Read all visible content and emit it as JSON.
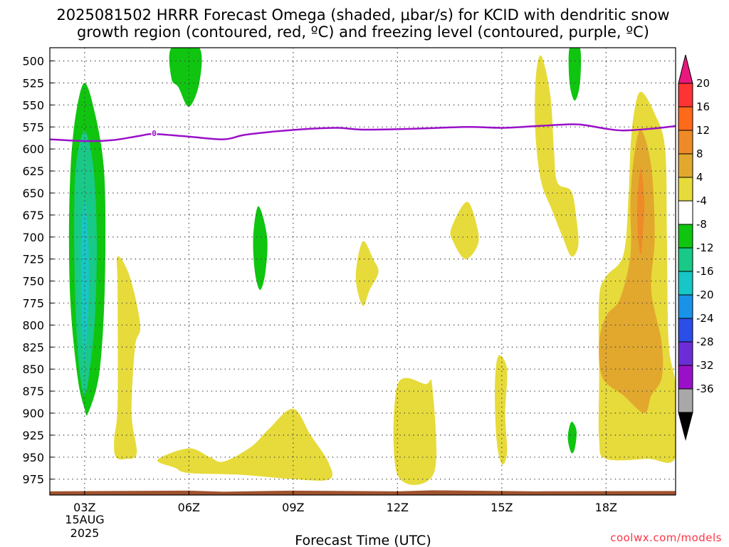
{
  "chart_data": {
    "type": "contour",
    "title_line1": "2025081502 HRRR Forecast Omega (shaded, μbar/s) for KCID with dendritic snow",
    "title_line2": "growth region (contoured, red, ºC) and freezing level (contoured, purple, ºC)",
    "xlabel": "Forecast Time (UTC)",
    "ylabel": "",
    "x_ticks": [
      {
        "hour": 3,
        "label": "03Z"
      },
      {
        "hour": 6,
        "label": "06Z"
      },
      {
        "hour": 9,
        "label": "09Z"
      },
      {
        "hour": 12,
        "label": "12Z"
      },
      {
        "hour": 15,
        "label": "15Z"
      },
      {
        "hour": 18,
        "label": "18Z"
      }
    ],
    "x_date_label": [
      "15AUG",
      "2025"
    ],
    "xlim_hours": [
      2,
      20
    ],
    "y_ticks": [
      500,
      525,
      550,
      575,
      600,
      625,
      650,
      675,
      700,
      725,
      750,
      775,
      800,
      825,
      850,
      875,
      900,
      925,
      950,
      975
    ],
    "ylim_hpa": [
      485,
      993
    ],
    "grid": true,
    "colorbar": {
      "labels": [
        "20",
        "16",
        "12",
        "8",
        "4",
        "-4",
        "-8",
        "-12",
        "-16",
        "-20",
        "-24",
        "-28",
        "-32",
        "-36"
      ],
      "bins": [
        {
          "color": "#ff3333"
        },
        {
          "color": "#ff6a1a"
        },
        {
          "color": "#ee8a28"
        },
        {
          "color": "#e2a82e"
        },
        {
          "color": "#e6db3a"
        },
        {
          "color": "#ffffff"
        },
        {
          "color": "#0fc50f"
        },
        {
          "color": "#19c987"
        },
        {
          "color": "#17c6c6"
        },
        {
          "color": "#1893e8"
        },
        {
          "color": "#2b4ee8"
        },
        {
          "color": "#6b2ed6"
        },
        {
          "color": "#9a10c8"
        },
        {
          "color": "#a8a8a8"
        }
      ],
      "top_arrow_color": "#e8187e",
      "bottom_arrow_color": "#000000"
    },
    "freezing_level": {
      "color": "#9a10c8",
      "label": "0",
      "label_at": [
        5,
        582
      ],
      "points": [
        [
          2,
          589
        ],
        [
          3,
          591
        ],
        [
          3.8,
          590
        ],
        [
          4.6,
          585
        ],
        [
          5,
          583
        ],
        [
          6,
          586
        ],
        [
          7,
          589
        ],
        [
          7.6,
          584
        ],
        [
          8.5,
          580
        ],
        [
          9.5,
          577
        ],
        [
          10.3,
          576
        ],
        [
          11,
          578
        ],
        [
          12.5,
          577
        ],
        [
          14,
          575
        ],
        [
          15,
          576
        ],
        [
          16,
          574
        ],
        [
          17,
          572
        ],
        [
          17.4,
          573
        ],
        [
          18,
          577
        ],
        [
          18.5,
          579
        ],
        [
          19.3,
          577
        ],
        [
          20,
          574
        ]
      ]
    },
    "terrain": {
      "color": "#a0522d",
      "top_hpa": 988
    },
    "omega_regions": [
      {
        "color": "#0fc50f",
        "points": [
          [
            3.0,
            525
          ],
          [
            3.3,
            560
          ],
          [
            3.55,
            620
          ],
          [
            3.6,
            700
          ],
          [
            3.55,
            790
          ],
          [
            3.4,
            860
          ],
          [
            3.1,
            900
          ],
          [
            3.0,
            895
          ],
          [
            2.8,
            860
          ],
          [
            2.6,
            780
          ],
          [
            2.55,
            700
          ],
          [
            2.6,
            620
          ],
          [
            2.75,
            560
          ]
        ]
      },
      {
        "color": "#19c987",
        "points": [
          [
            3.0,
            580
          ],
          [
            3.25,
            620
          ],
          [
            3.35,
            700
          ],
          [
            3.3,
            790
          ],
          [
            3.15,
            850
          ],
          [
            3.0,
            880
          ],
          [
            2.85,
            850
          ],
          [
            2.75,
            790
          ],
          [
            2.7,
            700
          ],
          [
            2.75,
            620
          ]
        ]
      },
      {
        "color": "#17c6c6",
        "points": [
          [
            3.0,
            660
          ],
          [
            3.1,
            700
          ],
          [
            3.12,
            760
          ],
          [
            3.05,
            820
          ],
          [
            3.0,
            840
          ],
          [
            2.95,
            820
          ],
          [
            2.9,
            760
          ],
          [
            2.9,
            700
          ]
        ]
      },
      {
        "color": "#0fc50f",
        "points": [
          [
            5.5,
            485
          ],
          [
            6.3,
            485
          ],
          [
            6.3,
            525
          ],
          [
            6.0,
            552
          ],
          [
            5.7,
            530
          ],
          [
            5.5,
            520
          ]
        ]
      },
      {
        "color": "#0fc50f",
        "points": [
          [
            8.0,
            665
          ],
          [
            8.25,
            700
          ],
          [
            8.2,
            740
          ],
          [
            8.05,
            760
          ],
          [
            7.9,
            740
          ],
          [
            7.85,
            700
          ]
        ]
      },
      {
        "color": "#0fc50f",
        "points": [
          [
            16.95,
            485
          ],
          [
            17.25,
            485
          ],
          [
            17.25,
            525
          ],
          [
            17.1,
            545
          ],
          [
            16.95,
            525
          ]
        ]
      },
      {
        "color": "#0fc50f",
        "points": [
          [
            17.0,
            910
          ],
          [
            17.15,
            920
          ],
          [
            17.1,
            940
          ],
          [
            17.0,
            945
          ],
          [
            16.9,
            928
          ]
        ]
      },
      {
        "color": "#e6db3a",
        "points": [
          [
            3.95,
            722
          ],
          [
            4.3,
            745
          ],
          [
            4.6,
            800
          ],
          [
            4.45,
            825
          ],
          [
            4.35,
            900
          ],
          [
            4.5,
            945
          ],
          [
            4.2,
            952
          ],
          [
            3.9,
            950
          ],
          [
            3.85,
            930
          ],
          [
            3.95,
            890
          ],
          [
            3.95,
            760
          ]
        ]
      },
      {
        "color": "#e6db3a",
        "points": [
          [
            5.1,
            953
          ],
          [
            6.0,
            940
          ],
          [
            6.6,
            950
          ],
          [
            7.0,
            955
          ],
          [
            7.8,
            938
          ],
          [
            8.3,
            918
          ],
          [
            9.0,
            895
          ],
          [
            9.5,
            925
          ],
          [
            10.0,
            955
          ],
          [
            10.05,
            975
          ],
          [
            9.0,
            975
          ],
          [
            7.5,
            970
          ],
          [
            6.0,
            968
          ],
          [
            5.6,
            962
          ]
        ]
      },
      {
        "color": "#e6db3a",
        "points": [
          [
            11.0,
            705
          ],
          [
            11.3,
            725
          ],
          [
            11.45,
            740
          ],
          [
            11.2,
            760
          ],
          [
            11.0,
            778
          ],
          [
            10.8,
            745
          ]
        ]
      },
      {
        "color": "#e6db3a",
        "points": [
          [
            12.0,
            868
          ],
          [
            12.8,
            867
          ],
          [
            13.0,
            870
          ],
          [
            13.05,
            968
          ],
          [
            12.0,
            970
          ]
        ]
      },
      {
        "color": "#e6db3a",
        "points": [
          [
            14.0,
            660
          ],
          [
            14.3,
            690
          ],
          [
            14.3,
            710
          ],
          [
            13.95,
            725
          ],
          [
            13.6,
            705
          ],
          [
            13.55,
            690
          ]
        ]
      },
      {
        "color": "#e6db3a",
        "points": [
          [
            14.9,
            835
          ],
          [
            15.15,
            850
          ],
          [
            15.1,
            900
          ],
          [
            15.15,
            945
          ],
          [
            15.0,
            958
          ],
          [
            14.85,
            930
          ],
          [
            14.8,
            870
          ]
        ]
      },
      {
        "color": "#e6db3a",
        "points": [
          [
            16.0,
            510
          ],
          [
            16.15,
            495
          ],
          [
            16.4,
            540
          ],
          [
            16.5,
            600
          ],
          [
            16.6,
            638
          ],
          [
            17.0,
            648
          ],
          [
            17.15,
            680
          ],
          [
            17.2,
            710
          ],
          [
            17.0,
            722
          ],
          [
            16.75,
            700
          ],
          [
            16.45,
            670
          ],
          [
            16.15,
            640
          ],
          [
            16.0,
            600
          ],
          [
            15.95,
            555
          ]
        ]
      },
      {
        "color": "#e6db3a",
        "points": [
          [
            19.0,
            535
          ],
          [
            19.4,
            560
          ],
          [
            19.7,
            600
          ],
          [
            19.75,
            700
          ],
          [
            19.8,
            820
          ],
          [
            20.0,
            870
          ],
          [
            20.0,
            950
          ],
          [
            19.2,
            952
          ],
          [
            18.0,
            952
          ],
          [
            17.8,
            930
          ],
          [
            17.8,
            860
          ],
          [
            17.8,
            770
          ],
          [
            18.0,
            745
          ],
          [
            18.5,
            720
          ],
          [
            18.65,
            650
          ],
          [
            18.7,
            600
          ],
          [
            18.8,
            560
          ]
        ]
      },
      {
        "color": "#e2a82e",
        "points": [
          [
            19.0,
            578
          ],
          [
            19.3,
            620
          ],
          [
            19.4,
            700
          ],
          [
            19.3,
            760
          ],
          [
            19.6,
            820
          ],
          [
            19.6,
            860
          ],
          [
            19.3,
            880
          ],
          [
            19.1,
            900
          ],
          [
            18.5,
            880
          ],
          [
            17.9,
            860
          ],
          [
            17.8,
            820
          ],
          [
            18.0,
            790
          ],
          [
            18.4,
            770
          ],
          [
            18.7,
            720
          ],
          [
            18.7,
            660
          ],
          [
            18.8,
            610
          ]
        ]
      },
      {
        "color": "#ee8a28",
        "points": [
          [
            19.0,
            622
          ],
          [
            19.1,
            660
          ],
          [
            19.05,
            700
          ],
          [
            19.0,
            720
          ],
          [
            18.92,
            700
          ],
          [
            18.9,
            660
          ]
        ]
      }
    ]
  },
  "credit": "coolwx.com/models"
}
